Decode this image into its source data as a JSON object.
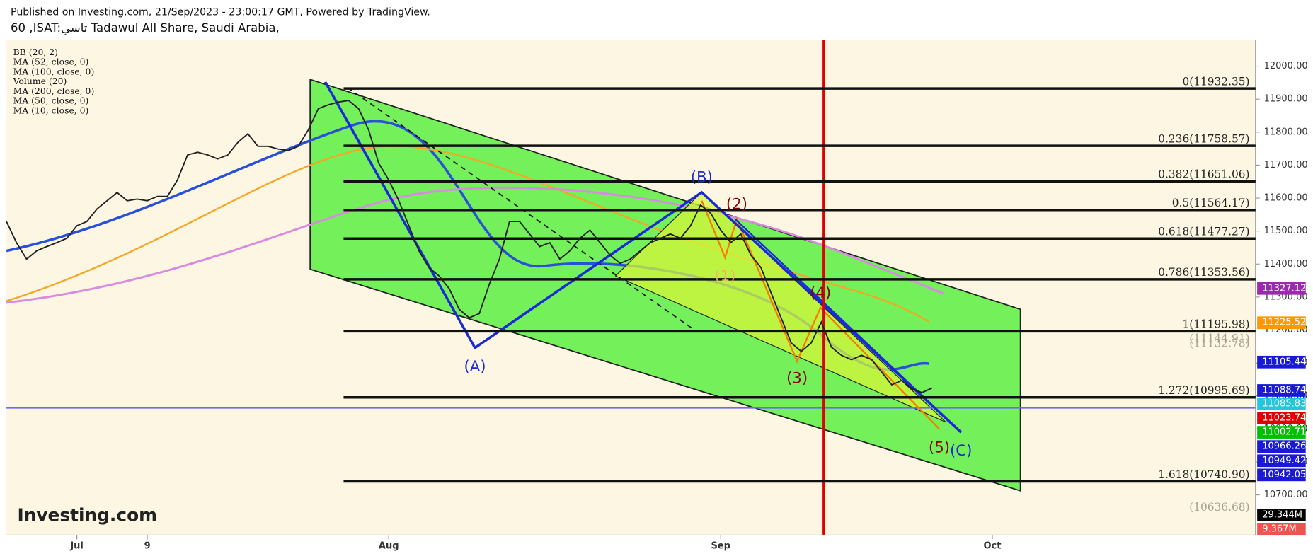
{
  "header": {
    "published": "Published on Investing.com, 21/Sep/2023 - 23:00:17 GMT, Powered by TradingView."
  },
  "chart_data": {
    "type": "line",
    "title": "60 ,ISAT:تاسي Tadawul All Share, Saudi Arabia,",
    "indicators": [
      "BB (20, 2)",
      "MA (52, close, 0)",
      "MA (100, close, 0)",
      "Volume (20)",
      "MA (200, close, 0)",
      "MA (50, close, 0)",
      "MA (10, close, 0)"
    ],
    "watermark": "Investing.com",
    "categories": [
      null,
      null,
      null,
      null,
      null,
      null,
      null,
      "Jul",
      null,
      null,
      null,
      null,
      null,
      null,
      "9",
      null,
      null,
      null,
      null,
      null,
      null,
      null,
      null,
      null,
      null,
      null,
      null,
      null,
      null,
      null,
      null,
      null,
      null,
      null,
      null,
      null,
      null,
      null,
      "Aug",
      null,
      null,
      null,
      null,
      null,
      null,
      null,
      null,
      null,
      null,
      null,
      null,
      null,
      null,
      null,
      null,
      null,
      null,
      null,
      null,
      null,
      null,
      null,
      null,
      null,
      null,
      null,
      null,
      null,
      null,
      null,
      null,
      "Sep",
      null,
      null,
      null,
      null,
      null,
      null,
      null,
      null,
      null,
      null,
      null,
      null,
      null,
      null,
      null,
      null,
      null,
      null,
      null,
      null,
      null,
      null,
      null,
      null,
      null,
      null,
      "Oct",
      null,
      null,
      null,
      null,
      null,
      null,
      null,
      null,
      null,
      null,
      null,
      null,
      null,
      null,
      null,
      null,
      null,
      null,
      null,
      null,
      null,
      null,
      null,
      null,
      null
    ],
    "series": [
      {
        "name": "ISAT",
        "color": "#222222",
        "values": [
          11529,
          11465,
          11415,
          11440,
          11453,
          11465,
          11478,
          11516,
          11529,
          11567,
          11592,
          11617,
          11592,
          11597,
          11592,
          11605,
          11605,
          11655,
          11731,
          11739,
          11731,
          11719,
          11731,
          11769,
          11795,
          11757,
          11757,
          11749,
          11744,
          11757,
          11807,
          11871,
          11883,
          11891,
          11896,
          11871,
          11807,
          11706,
          11655,
          11592,
          11516,
          11440,
          11389,
          11364,
          11326,
          11263,
          11237,
          11250,
          11339,
          11415,
          11529,
          11529,
          11491,
          11453,
          11465,
          11415,
          11440,
          11478,
          11503,
          11465,
          11427,
          11402,
          11415,
          11440,
          11465,
          11478,
          11491,
          11478,
          11516,
          11579,
          11554,
          11503,
          11465,
          11491,
          11427,
          11389,
          11313,
          11237,
          11161,
          11135,
          11161,
          11224,
          11148,
          11123,
          11110,
          11123,
          11110,
          11072,
          11034,
          11047,
          11022,
          11010,
          11024,
          null,
          null,
          null,
          null,
          null,
          null,
          null,
          null,
          null,
          null,
          null,
          null,
          null,
          null,
          null,
          null,
          null,
          null,
          null,
          null,
          null,
          null,
          null,
          null,
          null,
          null,
          null,
          null,
          null,
          null,
          null
        ]
      }
    ],
    "ylim": [
      10578,
      12079
    ],
    "yticks": [
      {
        "value": 10700,
        "label": "10700.00"
      },
      {
        "value": 10800,
        "label": "10800.00"
      },
      {
        "value": 10900,
        "label": "10900.00"
      },
      {
        "value": 11000,
        "label": "11000.00"
      },
      {
        "value": 11100,
        "label": "11100.00"
      },
      {
        "value": 11200,
        "label": "11200.00"
      },
      {
        "value": 11300,
        "label": "11300.00"
      },
      {
        "value": 11400,
        "label": "11400.00"
      },
      {
        "value": 11500,
        "label": "11500.00"
      },
      {
        "value": 11600,
        "label": "11600.00"
      },
      {
        "value": 11700,
        "label": "11700.00"
      },
      {
        "value": 11800,
        "label": "11800.00"
      },
      {
        "value": 11900,
        "label": "11900.00"
      },
      {
        "value": 12000,
        "label": "12000.00"
      }
    ],
    "fib_levels": [
      {
        "label": "0(11932.35)",
        "value": 11932.35
      },
      {
        "label": "0.236(11758.57)",
        "value": 11758.57
      },
      {
        "label": "0.382(11651.06)",
        "value": 11651.06
      },
      {
        "label": "0.5(11564.17)",
        "value": 11564.17
      },
      {
        "label": "0.618(11477.27)",
        "value": 11477.27
      },
      {
        "label": "0.786(11353.56)",
        "value": 11353.56
      },
      {
        "label": "1(11195.98)",
        "value": 11195.98
      },
      {
        "label": "1.272(10995.69)",
        "value": 10995.69
      },
      {
        "label": "1.618(10740.90)",
        "value": 10740.9
      }
    ],
    "price_labels": [
      {
        "label": "11327.12",
        "color": "#9c27b0"
      },
      {
        "label": "11225.52",
        "color": "#ff9800"
      },
      {
        "label": "11105.44",
        "color": "#1a1ad6"
      },
      {
        "label": "11088.74",
        "color": "#1a1ad6"
      },
      {
        "label": "11085.83",
        "color": "#26c6da"
      },
      {
        "label": "11023.74",
        "color": "#e00000"
      },
      {
        "label": "11002.71",
        "color": "#00c000"
      },
      {
        "label": "10966.26",
        "color": "#1a1ad6"
      },
      {
        "label": "10949.42",
        "color": "#1a1ad6"
      },
      {
        "label": "10942.05",
        "color": "#1a1ad6"
      },
      {
        "label": "29.344M",
        "color": "#000000"
      },
      {
        "label": "9.367M",
        "color": "#ef5350"
      }
    ],
    "faint_labels": [
      "(11144.91)",
      "(11132.78)",
      "(10636.68)"
    ],
    "annotations": [
      "(A)",
      "(B)",
      "(C)",
      "(1)",
      "(2)",
      "(3)",
      "(4)",
      "(5)"
    ]
  }
}
